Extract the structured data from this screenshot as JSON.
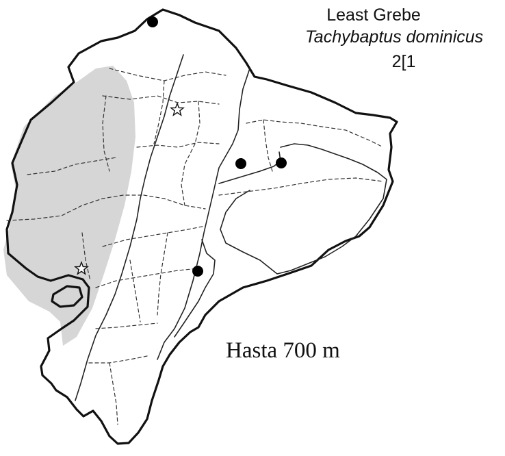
{
  "map": {
    "common_name": "Least Grebe",
    "scientific_name": "Tachybaptus dominicus",
    "code": "2[1",
    "elevation_note": "Hasta 700 m",
    "colors": {
      "range_fill": "#d6d6d6",
      "outline": "#111111",
      "records": "#000000"
    },
    "legend_symbols": [
      "filled-circle",
      "open-star"
    ]
  }
}
